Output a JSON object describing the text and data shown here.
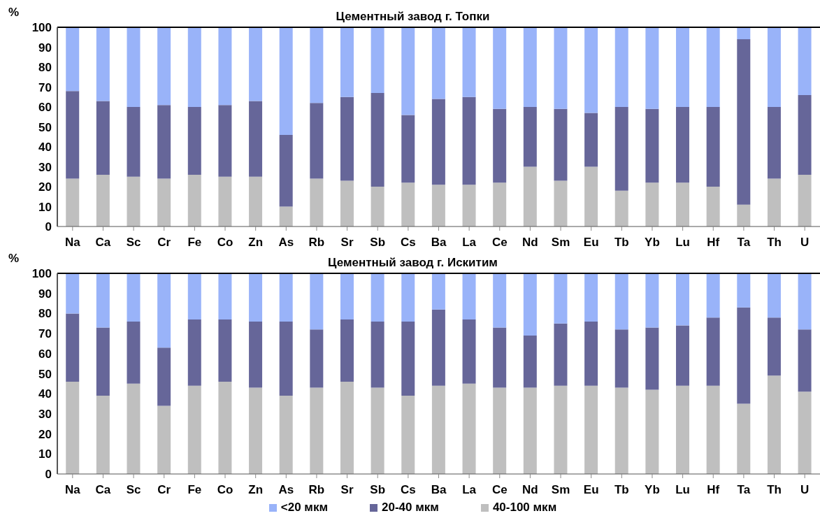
{
  "chart_data": [
    {
      "type": "bar",
      "title": "Цементный завод г. Топки",
      "ylabel": "%",
      "stacked": true,
      "legend": false,
      "categories": [
        "Na",
        "Ca",
        "Sc",
        "Cr",
        "Fe",
        "Co",
        "Zn",
        "As",
        "Rb",
        "Sr",
        "Sb",
        "Cs",
        "Ba",
        "La",
        "Ce",
        "Nd",
        "Sm",
        "Eu",
        "Tb",
        "Yb",
        "Lu",
        "Hf",
        "Ta",
        "Th",
        "U"
      ],
      "ylim": [
        0,
        100
      ],
      "yticks": [
        0,
        10,
        20,
        30,
        40,
        50,
        60,
        70,
        80,
        90,
        100
      ],
      "series": [
        {
          "color": "#bfbfbf",
          "values": [
            24,
            26,
            25,
            24,
            26,
            25,
            25,
            10,
            24,
            23,
            20,
            22,
            21,
            21,
            22,
            30,
            23,
            30,
            18,
            22,
            22,
            20,
            11,
            24,
            26
          ]
        },
        {
          "color": "#666699",
          "values": [
            44,
            37,
            35,
            37,
            34,
            36,
            38,
            36,
            38,
            42,
            47,
            34,
            43,
            44,
            37,
            30,
            36,
            27,
            42,
            37,
            38,
            40,
            83,
            36,
            40
          ]
        },
        {
          "color": "#99b3f9",
          "values": [
            32,
            37,
            40,
            39,
            40,
            39,
            37,
            54,
            38,
            35,
            33,
            44,
            36,
            35,
            41,
            40,
            41,
            43,
            40,
            41,
            40,
            40,
            6,
            40,
            34
          ]
        }
      ]
    },
    {
      "type": "bar",
      "title": "Цементный завод г. Искитим",
      "ylabel": "%",
      "stacked": true,
      "legend": "bottom",
      "categories": [
        "Na",
        "Ca",
        "Sc",
        "Cr",
        "Fe",
        "Co",
        "Zn",
        "As",
        "Rb",
        "Sr",
        "Sb",
        "Cs",
        "Ba",
        "La",
        "Ce",
        "Nd",
        "Sm",
        "Eu",
        "Tb",
        "Yb",
        "Lu",
        "Hf",
        "Ta",
        "Th",
        "U"
      ],
      "ylim": [
        0,
        100
      ],
      "yticks": [
        0,
        10,
        20,
        30,
        40,
        50,
        60,
        70,
        80,
        90,
        100
      ],
      "series": [
        {
          "name": "40-100 мкм",
          "color": "#bfbfbf",
          "values": [
            46,
            39,
            45,
            34,
            44,
            46,
            43,
            39,
            43,
            46,
            43,
            39,
            44,
            45,
            43,
            43,
            44,
            44,
            43,
            42,
            44,
            44,
            35,
            49,
            41
          ]
        },
        {
          "name": "20-40 мкм",
          "color": "#666699",
          "values": [
            34,
            34,
            31,
            29,
            33,
            31,
            33,
            37,
            29,
            31,
            33,
            37,
            38,
            32,
            30,
            26,
            31,
            32,
            29,
            31,
            30,
            34,
            48,
            29,
            31
          ]
        },
        {
          "name": "<20 мкм",
          "color": "#99b3f9",
          "values": [
            20,
            27,
            24,
            37,
            23,
            23,
            24,
            24,
            28,
            23,
            24,
            24,
            18,
            23,
            27,
            31,
            25,
            24,
            28,
            27,
            26,
            22,
            17,
            22,
            28
          ]
        }
      ]
    }
  ]
}
